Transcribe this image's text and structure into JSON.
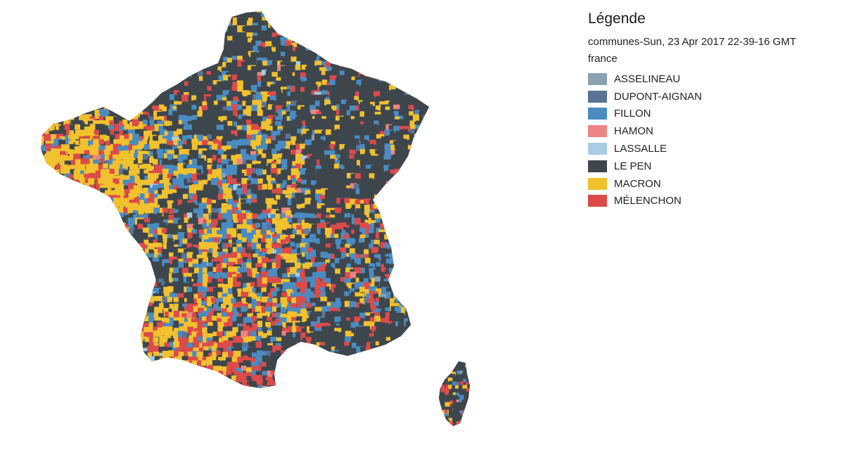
{
  "legend": {
    "title": "Légende",
    "layer": "communes-Sun, 23 Apr 2017 22-39-16 GMT",
    "group": "france",
    "items": [
      {
        "label": "ASSELINEAU",
        "color": "#8aa1b1"
      },
      {
        "label": "DUPONT-AIGNAN",
        "color": "#5a7396"
      },
      {
        "label": "FILLON",
        "color": "#4a8cc2"
      },
      {
        "label": "HAMON",
        "color": "#ec8583"
      },
      {
        "label": "LASSALLE",
        "color": "#a8cde4"
      },
      {
        "label": "LE PEN",
        "color": "#3e464d"
      },
      {
        "label": "MACRON",
        "color": "#f2c12e"
      },
      {
        "label": "MÉLENCHON",
        "color": "#dd4a4a"
      }
    ]
  },
  "map": {
    "regions": [
      "France",
      "Corse"
    ]
  }
}
